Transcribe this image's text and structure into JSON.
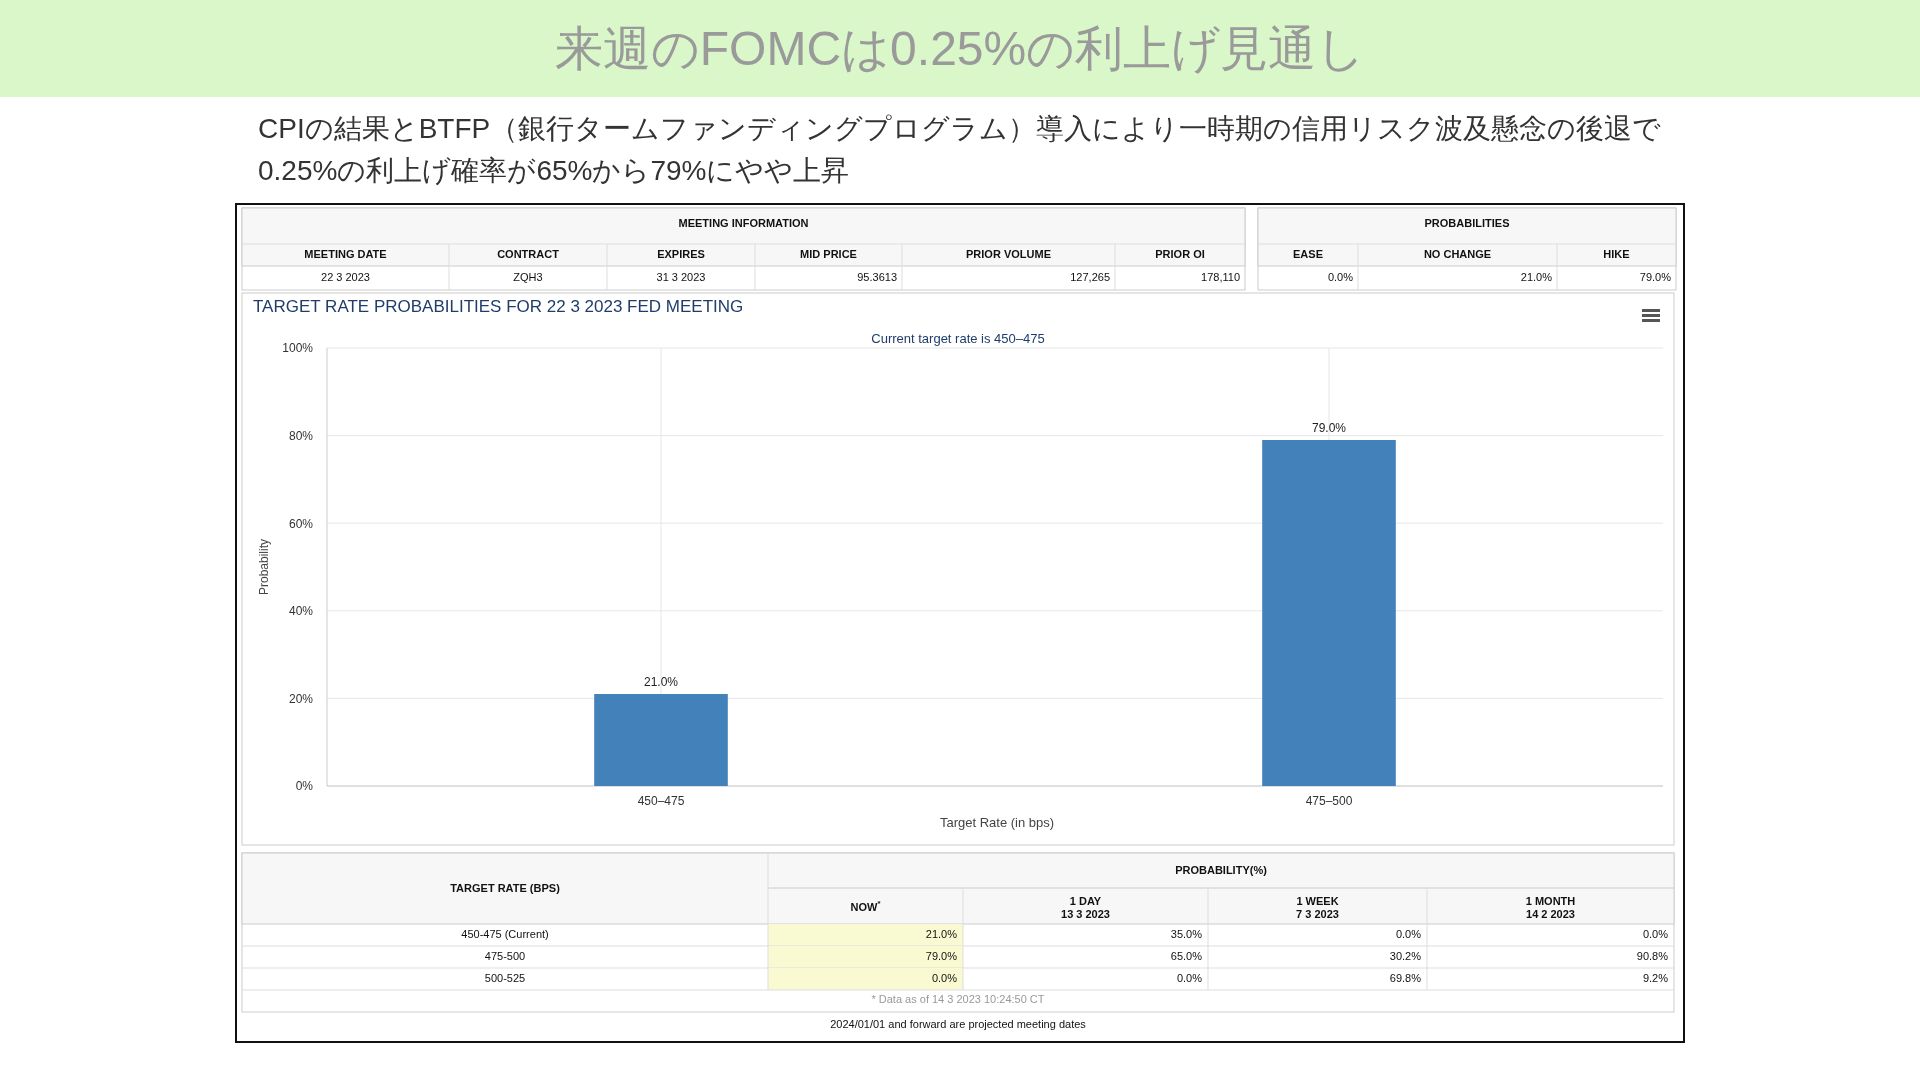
{
  "chart_data": [
    {
      "type": "other",
      "title": "来週のFOMCは0.25%の利上げ見通し",
      "subtitle": "CPIの結果とBTFP（銀行タームファンディングプログラム）導入により一時期の信用リスク波及懸念の後退で0.25%の利上げ確率が65%から79%にやや上昇"
    },
    {
      "type": "other",
      "title": "MEETING INFORMATION",
      "categories": [
        "MEETING DATE",
        "CONTRACT",
        "EXPIRES",
        "MID PRICE",
        "PRIOR VOLUME",
        "PRIOR OI"
      ],
      "cell_labels": [
        [
          "22 3 2023",
          "ZQH3",
          "31 3 2023",
          "95.3613",
          "127,265",
          "178,110"
        ]
      ]
    },
    {
      "type": "other",
      "title": "PROBABILITIES",
      "categories": [
        "EASE",
        "NO CHANGE",
        "HIKE"
      ],
      "cell_labels": [
        [
          "0.0%",
          "21.0%",
          "79.0%"
        ]
      ]
    },
    {
      "type": "bar",
      "title": "TARGET RATE PROBABILITIES FOR 22 3 2023 FED MEETING",
      "subtitle": "Current target rate is 450–475",
      "xlabel": "Target Rate (in bps)",
      "ylabel": "Probability",
      "categories": [
        "450–475",
        "475–500"
      ],
      "values": [
        21.0,
        79.0
      ],
      "value_labels": [
        "21.0%",
        "79.0%"
      ],
      "color": "#4281b9",
      "ylim": [
        0,
        100
      ],
      "yticks": [
        {
          "value": 0,
          "label": "0%"
        },
        {
          "value": 20,
          "label": "20%"
        },
        {
          "value": 40,
          "label": "40%"
        },
        {
          "value": 60,
          "label": "60%"
        },
        {
          "value": 80,
          "label": "80%"
        },
        {
          "value": 100,
          "label": "100%"
        }
      ],
      "grid": true
    },
    {
      "type": "other",
      "title": "PROBABILITY(%)",
      "categories": [
        "TARGET RATE (BPS)",
        "NOW$^{*}$",
        "1 DAY\n13 3 2023",
        "1 WEEK\n7 3 2023",
        "1 MONTH\n14 2 2023"
      ],
      "cell_labels": [
        [
          "450-475 (Current)",
          "21.0%",
          "35.0%",
          "0.0%",
          "0.0%"
        ],
        [
          "475-500",
          "79.0%",
          "65.0%",
          "30.2%",
          "90.8%"
        ],
        [
          "500-525",
          "0.0%",
          "0.0%",
          "69.8%",
          "9.2%"
        ]
      ],
      "annotations": [
        "* Data as of 14 3 2023 10:24:50 CT",
        "2024/01/01 and forward are projected meeting dates"
      ]
    }
  ]
}
